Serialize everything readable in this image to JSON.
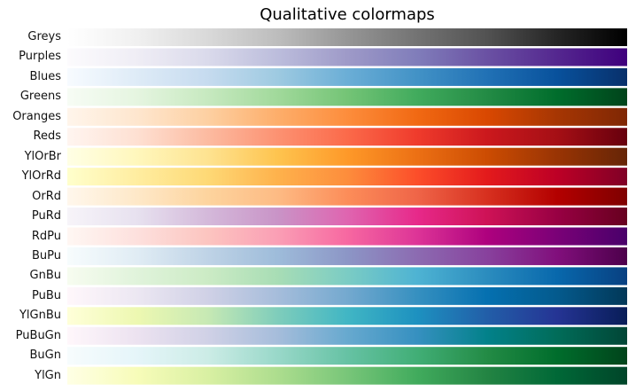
{
  "chart_data": {
    "type": "heatmap",
    "title": "Qualitative colormaps",
    "xlabel": "",
    "ylabel": "",
    "grid": false,
    "colormaps": [
      {
        "name": "Greys",
        "colors": [
          "#ffffff",
          "#f0f0f0",
          "#d9d9d9",
          "#bdbdbd",
          "#969696",
          "#737373",
          "#525252",
          "#252525",
          "#000000"
        ]
      },
      {
        "name": "Purples",
        "colors": [
          "#fcfbfd",
          "#efedf5",
          "#dadaeb",
          "#bcbddc",
          "#9e9ac8",
          "#807dba",
          "#6a51a3",
          "#54278f",
          "#3f007d"
        ]
      },
      {
        "name": "Blues",
        "colors": [
          "#f7fbff",
          "#deebf7",
          "#c6dbef",
          "#9ecae1",
          "#6baed6",
          "#4292c6",
          "#2171b5",
          "#08519c",
          "#08306b"
        ]
      },
      {
        "name": "Greens",
        "colors": [
          "#f7fcf5",
          "#e5f5e0",
          "#c7e9c0",
          "#a1d99b",
          "#74c476",
          "#41ab5d",
          "#238b45",
          "#006d2c",
          "#00441b"
        ]
      },
      {
        "name": "Oranges",
        "colors": [
          "#fff5eb",
          "#fee6ce",
          "#fdd0a2",
          "#fdae6b",
          "#fd8d3c",
          "#f16913",
          "#d94801",
          "#a63603",
          "#7f2704"
        ]
      },
      {
        "name": "Reds",
        "colors": [
          "#fff5f0",
          "#fee0d2",
          "#fcbba1",
          "#fc9272",
          "#fb6a4a",
          "#ef3b2c",
          "#cb181d",
          "#a50f15",
          "#67000d"
        ]
      },
      {
        "name": "YlOrBr",
        "colors": [
          "#ffffe5",
          "#fff7bc",
          "#fee391",
          "#fec44f",
          "#fe9929",
          "#ec7014",
          "#cc4c02",
          "#993404",
          "#662506"
        ]
      },
      {
        "name": "YlOrRd",
        "colors": [
          "#ffffcc",
          "#ffeda0",
          "#fed976",
          "#feb24c",
          "#fd8d3c",
          "#fc4e2a",
          "#e31a1c",
          "#bd0026",
          "#800026"
        ]
      },
      {
        "name": "OrRd",
        "colors": [
          "#fff7ec",
          "#fee8c8",
          "#fdd49e",
          "#fdbb84",
          "#fc8d59",
          "#ef6548",
          "#d7301f",
          "#b30000",
          "#7f0000"
        ]
      },
      {
        "name": "PuRd",
        "colors": [
          "#f7f4f9",
          "#e7e1ef",
          "#d4b9da",
          "#c994c7",
          "#df65b0",
          "#e7298a",
          "#ce1256",
          "#980043",
          "#67001f"
        ]
      },
      {
        "name": "RdPu",
        "colors": [
          "#fff7f3",
          "#fde0dd",
          "#fcc5c0",
          "#fa9fb5",
          "#f768a1",
          "#dd3497",
          "#ae017e",
          "#7a0177",
          "#49006a"
        ]
      },
      {
        "name": "BuPu",
        "colors": [
          "#f7fcfd",
          "#e0ecf4",
          "#bfd3e6",
          "#9ebcda",
          "#8c96c6",
          "#8c6bb1",
          "#88419d",
          "#810f7c",
          "#4d004b"
        ]
      },
      {
        "name": "GnBu",
        "colors": [
          "#f7fcf0",
          "#e0f3db",
          "#ccebc5",
          "#a8ddb5",
          "#7bccc4",
          "#4eb3d3",
          "#2b8cbe",
          "#0868ac",
          "#084081"
        ]
      },
      {
        "name": "PuBu",
        "colors": [
          "#fff7fb",
          "#ece7f2",
          "#d0d1e6",
          "#a6bddb",
          "#74a9cf",
          "#3690c0",
          "#0570b0",
          "#045a8d",
          "#023858"
        ]
      },
      {
        "name": "YlGnBu",
        "colors": [
          "#ffffd9",
          "#edf8b1",
          "#c7e9b4",
          "#7fcdbb",
          "#41b6c4",
          "#1d91c0",
          "#225ea8",
          "#253494",
          "#081d58"
        ]
      },
      {
        "name": "PuBuGn",
        "colors": [
          "#fff7fb",
          "#ece2f0",
          "#d0d1e6",
          "#a6bddb",
          "#67a9cf",
          "#3690c0",
          "#02818a",
          "#016c59",
          "#014636"
        ]
      },
      {
        "name": "BuGn",
        "colors": [
          "#f7fcfd",
          "#e5f5f9",
          "#ccece6",
          "#99d8c9",
          "#66c2a4",
          "#41ae76",
          "#238b45",
          "#006d2c",
          "#00441b"
        ]
      },
      {
        "name": "YlGn",
        "colors": [
          "#ffffe5",
          "#f7fcb9",
          "#d9f0a3",
          "#addd8e",
          "#78c679",
          "#41ab5d",
          "#238443",
          "#006837",
          "#004529"
        ]
      }
    ]
  }
}
